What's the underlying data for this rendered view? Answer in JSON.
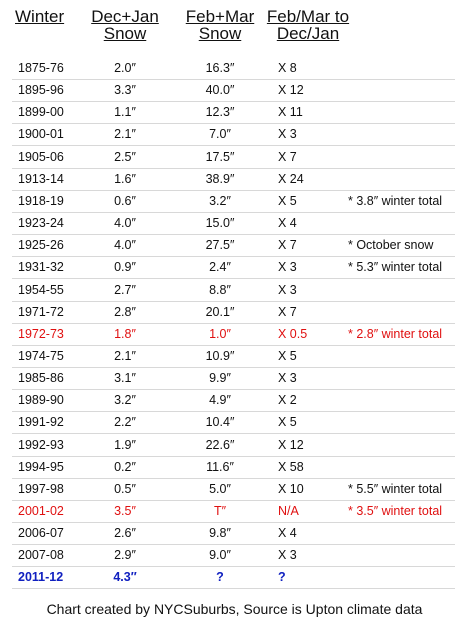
{
  "table": {
    "header": [
      "Winter",
      "Dec+Jan\nSnow",
      "Feb+Mar\nSnow",
      "Feb/Mar to\nDec/Jan"
    ],
    "rows": [
      {
        "cells": [
          "1875-76",
          "2.0″",
          "16.3″",
          "X 8"
        ]
      },
      {
        "cells": [
          "1895-96",
          "3.3″",
          "40.0″",
          "X 12"
        ]
      },
      {
        "cells": [
          "1899-00",
          "1.1″",
          "12.3″",
          "X 11"
        ]
      },
      {
        "cells": [
          "1900-01",
          "2.1″",
          "7.0″",
          "X 3"
        ]
      },
      {
        "cells": [
          "1905-06",
          "2.5″",
          "17.5″",
          "X 7"
        ]
      },
      {
        "cells": [
          "1913-14",
          "1.6″",
          "38.9″",
          "X 24"
        ]
      },
      {
        "cells": [
          "1918-19",
          "0.6″",
          "3.2″",
          "X 5",
          "* 3.8″ winter total"
        ]
      },
      {
        "cells": [
          "1923-24",
          "4.0″",
          "15.0″",
          "X 4"
        ]
      },
      {
        "cells": [
          "1925-26",
          "4.0″",
          "27.5″",
          "X 7",
          "* October snow"
        ]
      },
      {
        "cells": [
          "1931-32",
          "0.9″",
          "2.4″",
          "X 3",
          "* 5.3″ winter total"
        ]
      },
      {
        "cells": [
          "1954-55",
          "2.7″",
          "8.8″",
          "X 3"
        ]
      },
      {
        "cells": [
          "1971-72",
          "2.8″",
          "20.1″",
          "X 7"
        ]
      },
      {
        "cells": [
          "1972-73",
          "1.8″",
          "1.0″",
          "X 0.5",
          "* 2.8″ winter total"
        ],
        "color": "#e01010"
      },
      {
        "cells": [
          "1974-75",
          "2.1″",
          "10.9″",
          "X 5"
        ]
      },
      {
        "cells": [
          "1985-86",
          "3.1″",
          "9.9″",
          "X 3"
        ]
      },
      {
        "cells": [
          "1989-90",
          "3.2″",
          "4.9″",
          "X 2"
        ]
      },
      {
        "cells": [
          "1991-92",
          "2.2″",
          "10.4″",
          "X 5"
        ]
      },
      {
        "cells": [
          "1992-93",
          "1.9″",
          "22.6″",
          "X 12"
        ]
      },
      {
        "cells": [
          "1994-95",
          "0.2″",
          "11.6″",
          "X 58"
        ]
      },
      {
        "cells": [
          "1997-98",
          "0.5″",
          "5.0″",
          "X 10",
          "* 5.5″ winter total"
        ]
      },
      {
        "cells": [
          "2001-02",
          "3.5″",
          "T″",
          "N/A",
          "* 3.5″ winter total"
        ],
        "color": "#e01010"
      },
      {
        "cells": [
          "2006-07",
          "2.6″",
          "9.8″",
          "X 4"
        ]
      },
      {
        "cells": [
          "2007-08",
          "2.9″",
          "9.0″",
          "X 3"
        ]
      },
      {
        "cells": [
          "2011-12",
          "4.3″",
          "?",
          "?"
        ],
        "color": "#1020c0",
        "bold": true
      }
    ]
  },
  "footer": "Chart created by NYCSuburbs, Source is Upton climate data"
}
